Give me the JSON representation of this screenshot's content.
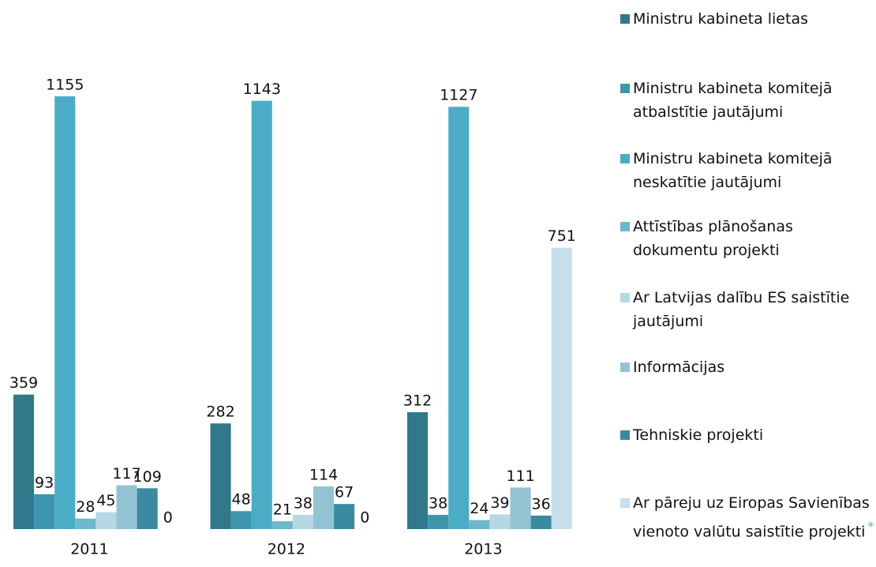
{
  "chart_data": {
    "type": "bar",
    "categories": [
      "2011",
      "2012",
      "2013"
    ],
    "series": [
      {
        "name": "Ministru kabineta lietas",
        "color": "#31788a",
        "values": [
          359,
          282,
          312
        ]
      },
      {
        "name": "Ministru kabineta komitejā atbalstītie jautājumi",
        "color": "#3d96ae",
        "values": [
          93,
          48,
          38
        ]
      },
      {
        "name": "Ministru kabineta komitejā neskatītie jautājumi",
        "color": "#4bacc6",
        "values": [
          1155,
          1143,
          1127
        ]
      },
      {
        "name": "Attīstības plānošanas dokumentu projekti",
        "color": "#6cb8cc",
        "values": [
          28,
          21,
          24
        ]
      },
      {
        "name": "Ar Latvijas dalību ES saistītie jautājumi",
        "color": "#b5d8e3",
        "values": [
          45,
          38,
          39
        ]
      },
      {
        "name": "Informācijas",
        "color": "#93c3d3",
        "values": [
          117,
          114,
          111
        ]
      },
      {
        "name": "Tehniskie projekti",
        "color": "#3a8ba0",
        "values": [
          109,
          67,
          36
        ]
      },
      {
        "name": "Ar pāreju uz Eiropas Savienības vienoto valūtu saistītie projekti",
        "color": "#c6dfe8",
        "values": [
          0,
          0,
          751
        ]
      }
    ],
    "footnote_mark": "*",
    "ylim": [
      0,
      1200
    ],
    "legend": "right"
  }
}
